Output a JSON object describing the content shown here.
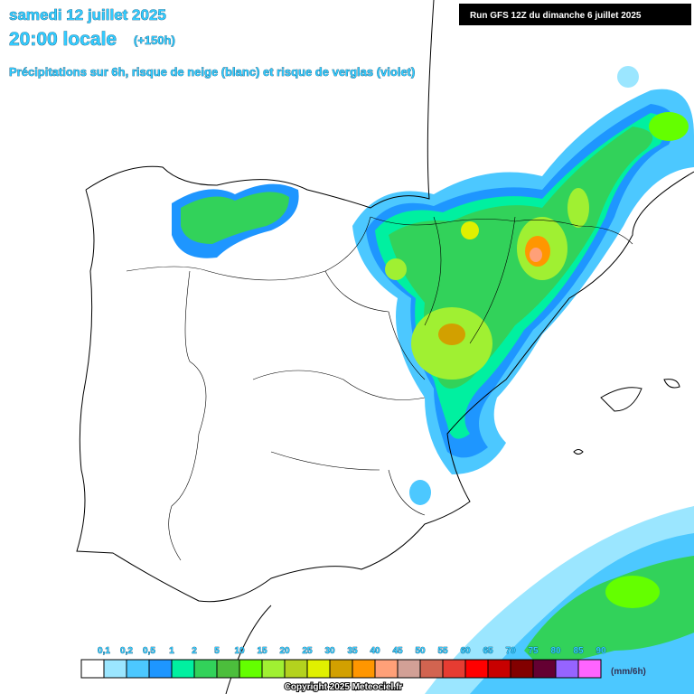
{
  "header": {
    "date": "samedi 12 juillet 2025",
    "time": "20:00 locale",
    "lead": "(+150h)",
    "subtitle": "Précipitations sur 6h, risque de neige (blanc) et risque de verglas (violet)",
    "run": "Run GFS 12Z du dimanche 6 juillet 2025"
  },
  "legend": {
    "labels": [
      "0,1",
      "0,2",
      "0,5",
      "1",
      "2",
      "5",
      "10",
      "15",
      "20",
      "25",
      "30",
      "35",
      "40",
      "45",
      "50",
      "55",
      "60",
      "65",
      "70",
      "75",
      "80",
      "85",
      "90"
    ],
    "colors": [
      "#ffffff",
      "#9be6ff",
      "#4cc8ff",
      "#1e96ff",
      "#00f0a0",
      "#32d25a",
      "#4cbe3c",
      "#64ff00",
      "#a0f032",
      "#b4d21e",
      "#e0f000",
      "#d2a000",
      "#ff9600",
      "#ffa078",
      "#d2a096",
      "#d26450",
      "#e63c32",
      "#ff0000",
      "#c80000",
      "#820000",
      "#640032",
      "#9664ff",
      "#ff64ff"
    ],
    "unit": "(mm/6h)"
  },
  "footer": {
    "copyright": "Copyright 2025 Meteociel.fr"
  }
}
